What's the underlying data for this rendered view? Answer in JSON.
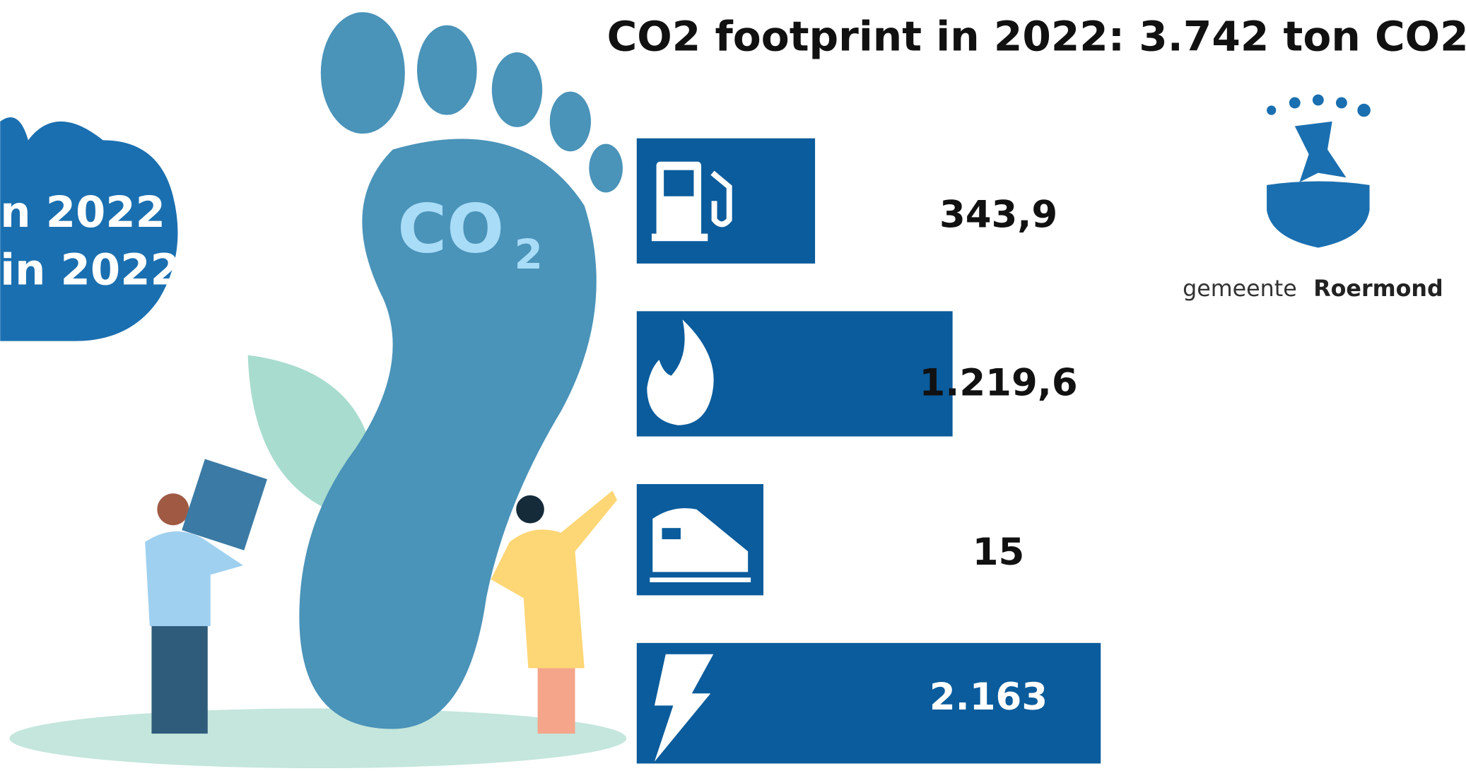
{
  "chart_data": {
    "type": "bar",
    "title": "CO2 footprint in 2022: 3.742 ton CO2",
    "values": [
      343.9,
      1219.6,
      15,
      2163
    ],
    "value_labels": [
      "343,9",
      "1.219,6",
      "15",
      "2.163"
    ],
    "color": "#0a5c9c"
  },
  "illustration": {
    "cloud_lines": [
      "n 2022",
      "in 2022"
    ],
    "foot_label": "CO",
    "foot_subscript": "2"
  },
  "logo": {
    "prefix": "gemeente",
    "name": "Roermond"
  }
}
